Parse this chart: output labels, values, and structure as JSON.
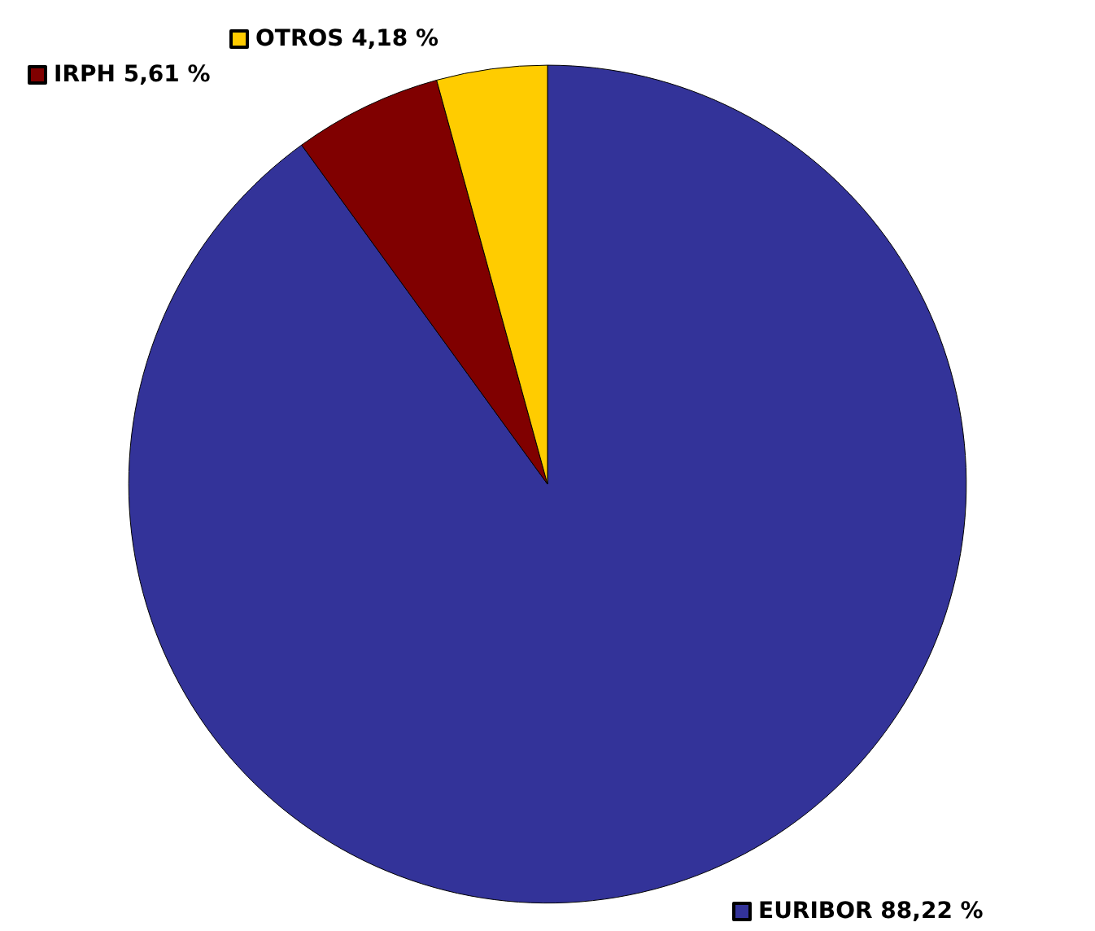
{
  "chart_data": {
    "type": "pie",
    "categories": [
      "EURIBOR",
      "IRPH",
      "OTROS"
    ],
    "values": [
      88.22,
      5.61,
      4.18
    ],
    "colors": [
      "#333399",
      "#800000",
      "#ffcc00"
    ],
    "value_labels": [
      "88,22 %",
      "5,61 %",
      "4,18 %"
    ],
    "legend": "top left"
  }
}
